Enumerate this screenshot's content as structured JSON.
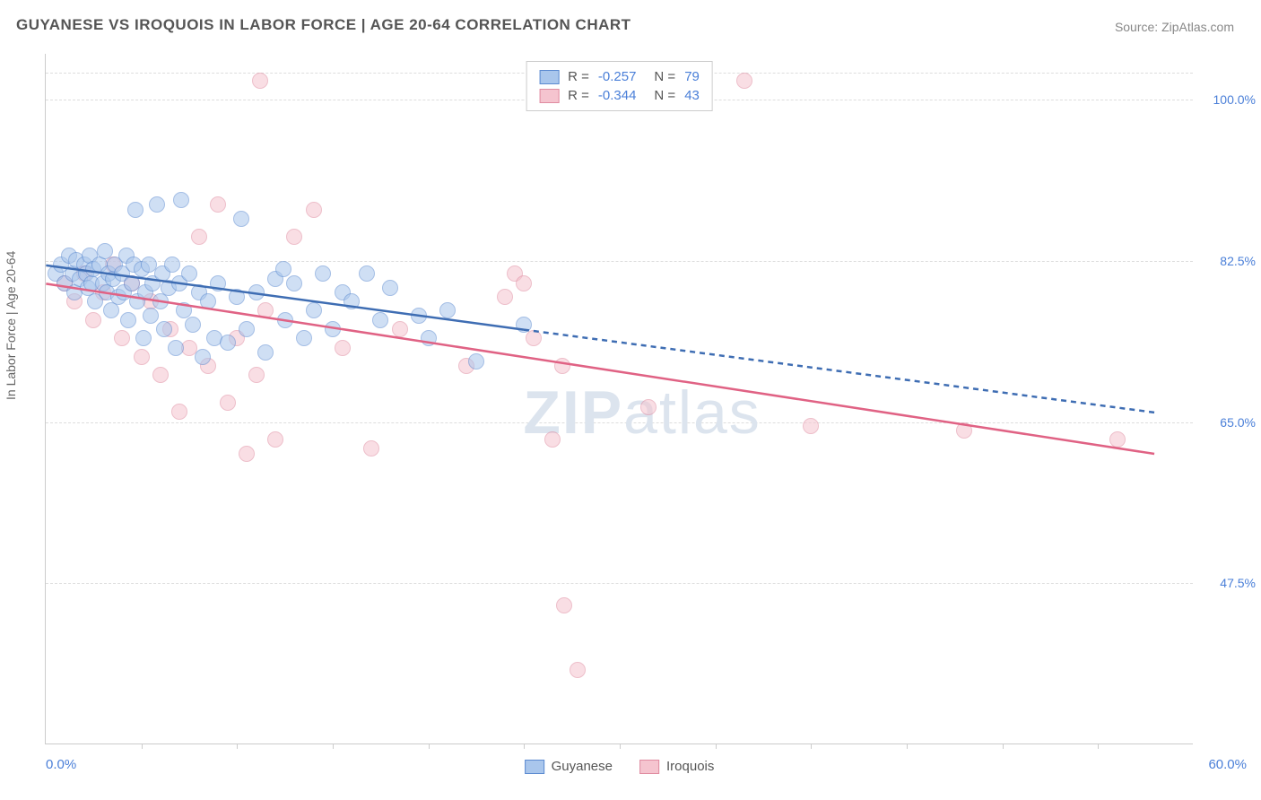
{
  "title": "GUYANESE VS IROQUOIS IN LABOR FORCE | AGE 20-64 CORRELATION CHART",
  "source": "Source: ZipAtlas.com",
  "watermark": "ZIPatlas",
  "y_axis_label": "In Labor Force | Age 20-64",
  "chart": {
    "type": "scatter",
    "background_color": "#ffffff",
    "grid_color": "#dddddd",
    "border_color": "#cccccc",
    "xlim": [
      0,
      60
    ],
    "ylim": [
      30,
      105
    ],
    "x_ticks": [
      5,
      10,
      15,
      20,
      25,
      30,
      35,
      40,
      45,
      50,
      55
    ],
    "x_axis_left_label": "0.0%",
    "x_axis_right_label": "60.0%",
    "y_gridlines": [
      47.5,
      65.0,
      82.5,
      100.0,
      103.0
    ],
    "y_tick_labels": [
      "47.5%",
      "65.0%",
      "82.5%",
      "100.0%"
    ],
    "title_fontsize": 17,
    "label_fontsize": 14,
    "tick_color": "#4a7fd8",
    "point_radius": 9,
    "point_opacity": 0.55
  },
  "series": {
    "guyanese": {
      "label": "Guyanese",
      "fill_color": "#a9c6ec",
      "stroke_color": "#5b8ad0",
      "R": "-0.257",
      "N": "79",
      "trend_line": {
        "x1": 0,
        "y1": 82.0,
        "x2": 25,
        "y2": 75.0,
        "x2_dash": 58,
        "y2_dash": 66.0,
        "color": "#3e6db3",
        "width": 2.5
      },
      "points": [
        [
          0.5,
          81
        ],
        [
          0.8,
          82
        ],
        [
          1.0,
          80
        ],
        [
          1.2,
          83
        ],
        [
          1.4,
          81
        ],
        [
          1.5,
          79
        ],
        [
          1.6,
          82.5
        ],
        [
          1.8,
          80.5
        ],
        [
          2.0,
          82
        ],
        [
          2.1,
          81
        ],
        [
          2.2,
          79.5
        ],
        [
          2.3,
          83
        ],
        [
          2.4,
          80
        ],
        [
          2.5,
          81.5
        ],
        [
          2.6,
          78
        ],
        [
          2.8,
          82
        ],
        [
          3.0,
          80
        ],
        [
          3.1,
          83.5
        ],
        [
          3.2,
          79
        ],
        [
          3.3,
          81
        ],
        [
          3.4,
          77
        ],
        [
          3.5,
          80.5
        ],
        [
          3.6,
          82
        ],
        [
          3.8,
          78.5
        ],
        [
          4.0,
          81
        ],
        [
          4.1,
          79
        ],
        [
          4.2,
          83
        ],
        [
          4.3,
          76
        ],
        [
          4.5,
          80
        ],
        [
          4.6,
          82
        ],
        [
          4.7,
          88
        ],
        [
          4.8,
          78
        ],
        [
          5.0,
          81.5
        ],
        [
          5.1,
          74
        ],
        [
          5.2,
          79
        ],
        [
          5.4,
          82
        ],
        [
          5.5,
          76.5
        ],
        [
          5.6,
          80
        ],
        [
          5.8,
          88.5
        ],
        [
          6.0,
          78
        ],
        [
          6.1,
          81
        ],
        [
          6.2,
          75
        ],
        [
          6.4,
          79.5
        ],
        [
          6.6,
          82
        ],
        [
          6.8,
          73
        ],
        [
          7.0,
          80
        ],
        [
          7.1,
          89
        ],
        [
          7.2,
          77
        ],
        [
          7.5,
          81
        ],
        [
          7.7,
          75.5
        ],
        [
          8.0,
          79
        ],
        [
          8.2,
          72
        ],
        [
          8.5,
          78
        ],
        [
          8.8,
          74
        ],
        [
          9.0,
          80
        ],
        [
          9.5,
          73.5
        ],
        [
          10.0,
          78.5
        ],
        [
          10.2,
          87
        ],
        [
          10.5,
          75
        ],
        [
          11.0,
          79
        ],
        [
          11.5,
          72.5
        ],
        [
          12.0,
          80.5
        ],
        [
          12.4,
          81.5
        ],
        [
          12.5,
          76
        ],
        [
          13.0,
          80
        ],
        [
          13.5,
          74
        ],
        [
          14.0,
          77
        ],
        [
          14.5,
          81
        ],
        [
          15.0,
          75
        ],
        [
          15.5,
          79
        ],
        [
          16.0,
          78
        ],
        [
          16.8,
          81
        ],
        [
          17.5,
          76
        ],
        [
          18.0,
          79.5
        ],
        [
          19.5,
          76.5
        ],
        [
          20.0,
          74
        ],
        [
          21.0,
          77
        ],
        [
          22.5,
          71.5
        ],
        [
          25.0,
          75.5
        ]
      ]
    },
    "iroquois": {
      "label": "Iroquois",
      "fill_color": "#f5c4cf",
      "stroke_color": "#e08ba0",
      "R": "-0.344",
      "N": "43",
      "trend_line": {
        "x1": 0,
        "y1": 80.0,
        "x2": 58,
        "y2": 61.5,
        "color": "#e06284",
        "width": 2.5
      },
      "points": [
        [
          1.0,
          80
        ],
        [
          1.5,
          78
        ],
        [
          2.0,
          81
        ],
        [
          2.5,
          76
        ],
        [
          3.0,
          79
        ],
        [
          3.5,
          82
        ],
        [
          4.0,
          74
        ],
        [
          4.5,
          80
        ],
        [
          5.0,
          72
        ],
        [
          5.5,
          78
        ],
        [
          6.0,
          70
        ],
        [
          6.5,
          75
        ],
        [
          7.0,
          66
        ],
        [
          7.5,
          73
        ],
        [
          8.0,
          85
        ],
        [
          8.5,
          71
        ],
        [
          9.0,
          88.5
        ],
        [
          9.5,
          67
        ],
        [
          10.0,
          74
        ],
        [
          10.5,
          61.5
        ],
        [
          11.0,
          70
        ],
        [
          11.2,
          102
        ],
        [
          11.5,
          77
        ],
        [
          12.0,
          63
        ],
        [
          13.0,
          85
        ],
        [
          14.0,
          88
        ],
        [
          15.5,
          73
        ],
        [
          17.0,
          62
        ],
        [
          18.5,
          75
        ],
        [
          22.0,
          71
        ],
        [
          24.0,
          78.5
        ],
        [
          24.5,
          81
        ],
        [
          25.0,
          80
        ],
        [
          25.5,
          74
        ],
        [
          26.5,
          63
        ],
        [
          27.0,
          71
        ],
        [
          27.1,
          45
        ],
        [
          27.8,
          38
        ],
        [
          31.5,
          66.5
        ],
        [
          36.5,
          102
        ],
        [
          40.0,
          64.5
        ],
        [
          48.0,
          64
        ],
        [
          56.0,
          63
        ]
      ]
    }
  },
  "legend_bottom": [
    {
      "key": "guyanese"
    },
    {
      "key": "iroquois"
    }
  ]
}
